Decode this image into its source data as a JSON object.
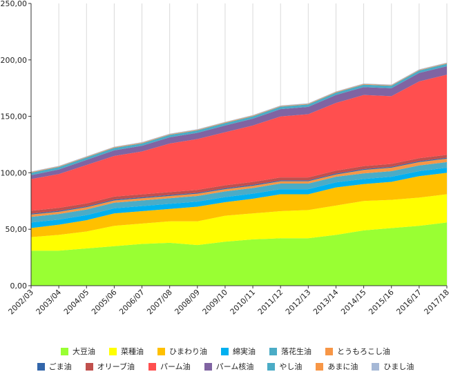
{
  "chart_data": {
    "type": "area",
    "stacked": true,
    "categories": [
      "2002/03",
      "2003/04",
      "2004/05",
      "2005/06",
      "2006/07",
      "2007/08",
      "2008/09",
      "2009/10",
      "2010/11",
      "2011/12",
      "2012/13",
      "2013/14",
      "2014/15",
      "2015/16",
      "2016/17",
      "2017/18"
    ],
    "ylim": [
      0,
      250
    ],
    "yticks": [
      "0,00",
      "50,00",
      "100,00",
      "150,00",
      "200,00",
      "250,00"
    ],
    "grid": "vertical-major",
    "legend_position": "bottom",
    "series": [
      {
        "name": "大豆油",
        "color": "#99ff33",
        "values": [
          31,
          31,
          33,
          35,
          37,
          38,
          36,
          39,
          41,
          42,
          42,
          45,
          49,
          51,
          53,
          56
        ]
      },
      {
        "name": "菜種油",
        "color": "#ffff00",
        "values": [
          12,
          14,
          15,
          18,
          18,
          19,
          21,
          23,
          23,
          24,
          25,
          26,
          26,
          25,
          25,
          25
        ]
      },
      {
        "name": "ひまわり油",
        "color": "#ffc000",
        "values": [
          8,
          9,
          10,
          11,
          11,
          11,
          13,
          12,
          13,
          15,
          14,
          16,
          15,
          16,
          19,
          19
        ]
      },
      {
        "name": "綿実油",
        "color": "#00b0f0",
        "values": [
          5,
          4.5,
          4.5,
          4.5,
          4.5,
          4.5,
          4.5,
          4.5,
          4.5,
          4.5,
          4.5,
          4.5,
          4.5,
          4.5,
          4.5,
          4.5
        ]
      },
      {
        "name": "落花生油",
        "color": "#4bacc6",
        "values": [
          5,
          5,
          5,
          5,
          5,
          5,
          5,
          5,
          5,
          5,
          5,
          5,
          5,
          5,
          5,
          5
        ]
      },
      {
        "name": "とうもろこし油",
        "color": "#f79646",
        "values": [
          2,
          2,
          2,
          2,
          2,
          2,
          2,
          2,
          2,
          2,
          2,
          2,
          3,
          3,
          3,
          3
        ]
      },
      {
        "name": "ごま油",
        "color": "#3366aa",
        "values": [
          0.8,
          0.8,
          0.8,
          0.8,
          0.8,
          0.8,
          0.8,
          0.8,
          0.8,
          0.8,
          0.8,
          0.8,
          0.8,
          0.8,
          0.8,
          0.8
        ]
      },
      {
        "name": "オリーブ油",
        "color": "#c0504d",
        "values": [
          2.6,
          2.6,
          2.6,
          2.6,
          2.6,
          2.6,
          2.6,
          2.6,
          2.6,
          2.6,
          2.6,
          2.6,
          2.6,
          2.6,
          2.6,
          2.6
        ]
      },
      {
        "name": "パーム油",
        "color": "#ff4f4f",
        "values": [
          28,
          30,
          34,
          36,
          38,
          43,
          45,
          47,
          50,
          54,
          56,
          60,
          63,
          60,
          68,
          71
        ]
      },
      {
        "name": "パーム核油",
        "color": "#8064a2",
        "values": [
          3.5,
          4,
          4.5,
          5,
          5,
          5.5,
          5.5,
          6,
          6,
          6.5,
          6.5,
          7,
          7,
          7,
          7.5,
          7.5
        ]
      },
      {
        "name": "やし油",
        "color": "#4bacc6",
        "values": [
          2.2,
          2.2,
          2.2,
          2.2,
          2.2,
          2.2,
          2.2,
          2.2,
          2.2,
          2.2,
          2.2,
          2.2,
          2.2,
          2.2,
          2.2,
          2.2
        ]
      },
      {
        "name": "あまに油",
        "color": "#f79646",
        "values": [
          0.5,
          0.5,
          0.5,
          0.5,
          0.5,
          0.5,
          0.5,
          0.5,
          0.5,
          0.5,
          0.5,
          0.5,
          0.5,
          0.5,
          0.5,
          0.5
        ]
      },
      {
        "name": "ひまし油",
        "color": "#a5b8d6",
        "values": [
          0.5,
          0.5,
          0.5,
          0.5,
          0.5,
          0.5,
          0.5,
          0.5,
          0.5,
          0.5,
          0.5,
          0.5,
          0.5,
          0.5,
          0.5,
          0.5
        ]
      }
    ],
    "legend_rows": [
      [
        0,
        1,
        2,
        3,
        4,
        5
      ],
      [
        6,
        7,
        8,
        9,
        10,
        11,
        12
      ]
    ]
  }
}
